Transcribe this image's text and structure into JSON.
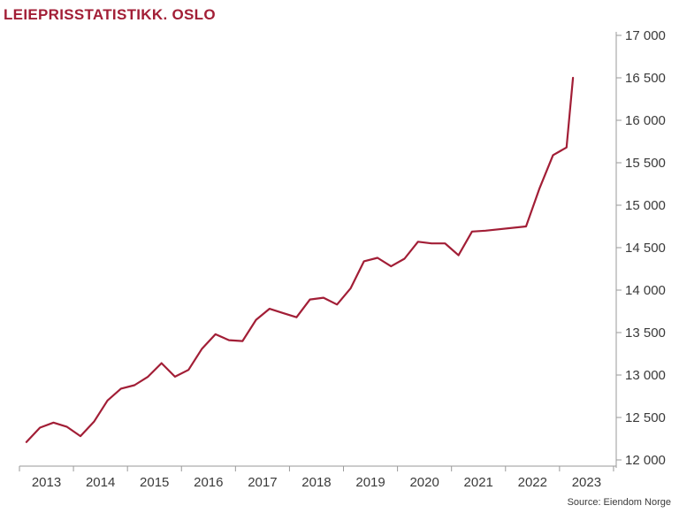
{
  "colors": {
    "line": "#A21E36",
    "title": "#A21E36",
    "axis": "#9a9a9a",
    "text": "#3a3a3a"
  },
  "chart_data": {
    "type": "line",
    "title": "LEIEPRISSTATISTIKK. OSLO",
    "source": "Source: Eiendom Norge",
    "ylim": [
      12000,
      17000
    ],
    "yticks": [
      12000,
      12500,
      13000,
      13500,
      14000,
      14500,
      15000,
      15500,
      16000,
      16500,
      17000
    ],
    "ytick_labels": [
      "12 000",
      "12 500",
      "13 000",
      "13 500",
      "14 000",
      "14 500",
      "15 000",
      "15 500",
      "16 000",
      "16 500",
      "17 000"
    ],
    "xlim": [
      2012.5,
      2023.55
    ],
    "xticks": [
      2013,
      2014,
      2015,
      2016,
      2017,
      2018,
      2019,
      2020,
      2021,
      2022,
      2023
    ],
    "xtick_labels": [
      "2013",
      "2014",
      "2015",
      "2016",
      "2017",
      "2018",
      "2019",
      "2020",
      "2021",
      "2022",
      "2023"
    ],
    "grid": false,
    "y_axis_position": "right",
    "series": [
      {
        "x": [
          2012.63,
          2012.88,
          2013.13,
          2013.38,
          2013.63,
          2013.88,
          2014.13,
          2014.38,
          2014.63,
          2014.88,
          2015.13,
          2015.38,
          2015.63,
          2015.88,
          2016.13,
          2016.38,
          2016.63,
          2016.88,
          2017.13,
          2017.38,
          2017.63,
          2017.88,
          2018.13,
          2018.38,
          2018.63,
          2018.88,
          2019.13,
          2019.38,
          2019.63,
          2019.88,
          2020.13,
          2020.38,
          2020.63,
          2020.88,
          2021.13,
          2021.88,
          2022.13,
          2022.38,
          2022.63,
          2022.75
        ],
        "values": [
          12210,
          12380,
          12440,
          12390,
          12280,
          12450,
          12700,
          12840,
          12880,
          12980,
          13140,
          12980,
          13060,
          13310,
          13480,
          13410,
          13400,
          13650,
          13780,
          13730,
          13680,
          13890,
          13910,
          13830,
          14020,
          14340,
          14380,
          14280,
          14370,
          14570,
          14550,
          14550,
          14410,
          14690,
          14700,
          14750,
          15200,
          15590,
          15680,
          16500
        ]
      }
    ]
  }
}
